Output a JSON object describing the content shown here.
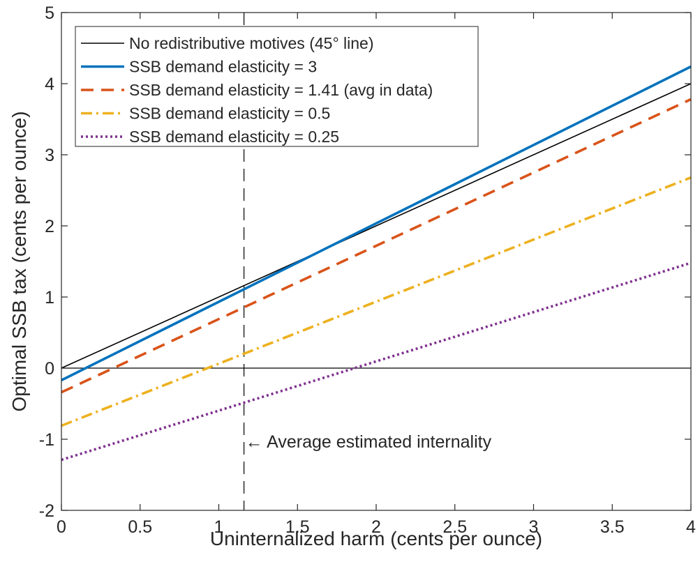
{
  "chart_data": {
    "type": "line",
    "title": "",
    "xlabel": "Uninternalized harm (cents per ounce)",
    "ylabel": "Optimal SSB tax (cents per ounce)",
    "xlim": [
      0,
      4
    ],
    "ylim": [
      -2,
      5
    ],
    "xticks": [
      0,
      0.5,
      1,
      1.5,
      2,
      2.5,
      3,
      3.5,
      4
    ],
    "xtick_labels": [
      "0",
      "0.5",
      "1",
      "1.5",
      "2",
      "2.5",
      "3",
      "3.5",
      "4"
    ],
    "yticks": [
      -2,
      -1,
      0,
      1,
      2,
      3,
      4,
      5
    ],
    "ytick_labels": [
      "-2",
      "-1",
      "0",
      "1",
      "2",
      "3",
      "4",
      "5"
    ],
    "grid": false,
    "legend_position": "top-left",
    "series": [
      {
        "name": "No redistributive motives (45° line)",
        "color": "#000000",
        "style": "solid",
        "x": [
          0,
          4
        ],
        "y": [
          0,
          4
        ]
      },
      {
        "name": "SSB demand elasticity = 3",
        "color": "#0072BD",
        "style": "solid",
        "x": [
          0,
          4
        ],
        "y": [
          -0.17,
          4.24
        ]
      },
      {
        "name": "SSB demand elasticity = 1.41 (avg in data)",
        "color": "#D95319",
        "style": "dashed",
        "x": [
          0,
          4
        ],
        "y": [
          -0.34,
          3.78
        ]
      },
      {
        "name": "SSB demand elasticity = 0.5",
        "color": "#EDB120",
        "style": "dashdot",
        "x": [
          0,
          4
        ],
        "y": [
          -0.81,
          2.68
        ]
      },
      {
        "name": "SSB demand elasticity = 0.25",
        "color": "#7E2F8E",
        "style": "dotted",
        "x": [
          0,
          4
        ],
        "y": [
          -1.29,
          1.48
        ]
      }
    ],
    "reference_lines": {
      "horizontal_zero": 0,
      "vertical_x": 1.16
    },
    "annotation": {
      "text": "← Average estimated internality",
      "x": 1.16,
      "y": -1.03
    }
  }
}
